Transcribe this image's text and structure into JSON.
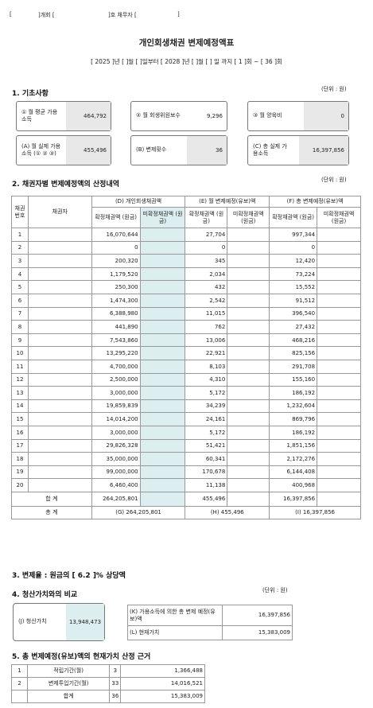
{
  "header_line": {
    "case_open": "[",
    "case_label": "]개회 [",
    "no_label": "]호  채무자 [",
    "close": "]"
  },
  "title": "개인회생채권 변제예정액표",
  "period": "[ 2025 ]년 [     ]월 [     ]일부터 [ 2028 ]년 [     ]월 [     ] 일 까지 [ 1 ]회 ~ [ 36 ]회",
  "unit_label": "(단위 : 원)",
  "section1": {
    "heading": "1. 기초사항",
    "monthly_income_label": "① 월 평균 가용소득",
    "monthly_income": "464,792",
    "trustee_fee_label": "② 월 회생위원보수",
    "trustee_fee": "9,296",
    "dependents_label": "③ 월 양육비",
    "dependents": "0",
    "actual_income_label": "(A) 월 실제 가용소득 (① ② ③)",
    "actual_income": "455,496",
    "payment_count_label": "(B) 변제횟수",
    "payment_count": "36",
    "total_income_label": "(C) 총 실제 가용소득",
    "total_income": "16,397,856"
  },
  "section2": {
    "heading": "2. 채권자별 변제예정액의 산정내역",
    "col_no": "채권 번호",
    "col_creditor": "채권자",
    "col_d": "(D) 개인회생채권액",
    "col_e": "(E) 월 변제예정(유보)액",
    "col_f": "(F) 총 변제예정(유보)액",
    "sub_confirmed": "확정채권액 (원금)",
    "sub_unconfirmed": "미확정채권액 (원금)",
    "sub_confirmed_e": "확정채권액 (원금)",
    "sub_unconfirmed_e": "미확정채권액 (원금)",
    "sub_confirmed_f": "확정채권액 (원금)",
    "sub_unconfirmed_f": "미확정채권액 (원금)",
    "rows": [
      {
        "no": "1",
        "d": "16,070,644",
        "e": "27,704",
        "f": "997,344"
      },
      {
        "no": "2",
        "d": "0",
        "e": "0",
        "f": "0"
      },
      {
        "no": "3",
        "d": "200,320",
        "e": "345",
        "f": "12,420"
      },
      {
        "no": "4",
        "d": "1,179,520",
        "e": "2,034",
        "f": "73,224"
      },
      {
        "no": "5",
        "d": "250,300",
        "e": "432",
        "f": "15,552"
      },
      {
        "no": "6",
        "d": "1,474,300",
        "e": "2,542",
        "f": "91,512"
      },
      {
        "no": "7",
        "d": "6,388,980",
        "e": "11,015",
        "f": "396,540"
      },
      {
        "no": "8",
        "d": "441,890",
        "e": "762",
        "f": "27,432"
      },
      {
        "no": "9",
        "d": "7,543,860",
        "e": "13,006",
        "f": "468,216"
      },
      {
        "no": "10",
        "d": "13,295,220",
        "e": "22,921",
        "f": "825,156"
      },
      {
        "no": "11",
        "d": "4,700,000",
        "e": "8,103",
        "f": "291,708"
      },
      {
        "no": "12",
        "d": "2,500,000",
        "e": "4,310",
        "f": "155,160"
      },
      {
        "no": "13",
        "d": "3,000,000",
        "e": "5,172",
        "f": "186,192"
      },
      {
        "no": "14",
        "d": "19,859,839",
        "e": "34,239",
        "f": "1,232,604"
      },
      {
        "no": "15",
        "d": "14,014,200",
        "e": "24,161",
        "f": "869,796"
      },
      {
        "no": "16",
        "d": "3,000,000",
        "e": "5,172",
        "f": "186,192"
      },
      {
        "no": "17",
        "d": "29,826,328",
        "e": "51,421",
        "f": "1,851,156"
      },
      {
        "no": "18",
        "d": "35,000,000",
        "e": "60,341",
        "f": "2,172,276"
      },
      {
        "no": "19",
        "d": "99,000,000",
        "e": "170,678",
        "f": "6,144,408"
      },
      {
        "no": "20",
        "d": "6,460,400",
        "e": "11,138",
        "f": "400,968"
      }
    ],
    "subtotal_label": "합 계",
    "subtotal_d": "264,205,801",
    "subtotal_e": "455,496",
    "subtotal_f": "16,397,856",
    "total_label": "총 계",
    "total_g": "(G) 264,205,801",
    "total_h": "(H) 455,496",
    "total_i": "(I) 16,397,856"
  },
  "section3": {
    "heading": "3. 변제율 : 원금의 [  6.2  ]% 상당액"
  },
  "section4": {
    "heading": "4. 청산가치와의 비교",
    "unit": "(단위 : 원)",
    "liquidation_label": "(J) 청산가치",
    "liquidation_value": "13,948,473",
    "k_label": "(K) 가용소득에 의한 총 변제 예정(유보)액",
    "k_value": "16,397,856",
    "l_label": "(L) 현재가치",
    "l_value": "15,383,009"
  },
  "section5": {
    "heading": "5. 총 변제예정(유보)액의 현재가치 산정 근거",
    "rows": [
      {
        "no": "1",
        "label": "적립기간(월)",
        "months": "3",
        "amount": "1,366,488"
      },
      {
        "no": "2",
        "label": "변제투입기간(월)",
        "months": "33",
        "amount": "14,016,521"
      },
      {
        "no": "",
        "label": "합계",
        "months": "36",
        "amount": "15,383,009"
      }
    ]
  }
}
